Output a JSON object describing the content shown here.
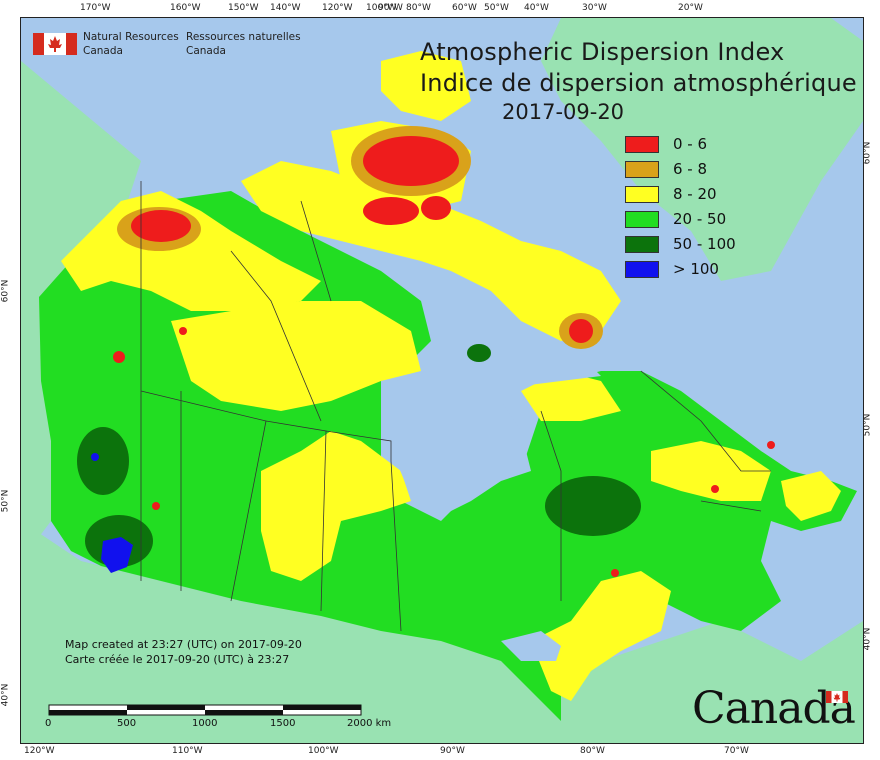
{
  "agency": {
    "name_en_line1": "Natural Resources",
    "name_en_line2": "Canada",
    "name_fr_line1": "Ressources naturelles",
    "name_fr_line2": "Canada"
  },
  "title": {
    "line1": "Atmospheric Dispersion Index",
    "line2": "Indice de dispersion atmosphérique",
    "date": "2017-09-20"
  },
  "legend": [
    {
      "label": "0 - 6",
      "color": "#ee1c1c"
    },
    {
      "label": "6 - 8",
      "color": "#d9a21a"
    },
    {
      "label": "8 - 20",
      "color": "#ffff22"
    },
    {
      "label": "20 - 50",
      "color": "#22dd22"
    },
    {
      "label": "50 - 100",
      "color": "#0c730c"
    },
    {
      "label": "> 100",
      "color": "#1111ee"
    }
  ],
  "footnote": {
    "en": "Map created at 23:27 (UTC) on 2017-09-20",
    "fr": "Carte créée le 2017-09-20 (UTC) à 23:27"
  },
  "scale": {
    "labels": [
      "0",
      "500",
      "1000",
      "1500",
      "2000 km"
    ]
  },
  "top_ticks": [
    "170°W",
    "160°W",
    "150°W",
    "140°W",
    "120°W",
    "100°W",
    "90°W",
    "80°W",
    "60°W",
    "50°W",
    "40°W",
    "30°W",
    "20°W"
  ],
  "bottom_ticks": [
    "120°W",
    "110°W",
    "100°W",
    "90°W",
    "80°W",
    "70°W"
  ],
  "left_ticks": [
    "60°N",
    "50°N",
    "40°N"
  ],
  "right_ticks": [
    "60°N",
    "50°N",
    "40°N"
  ],
  "wordmark": "Canada",
  "colors": {
    "ocean": "#a6c8ec",
    "land_outside": "#99e2b2",
    "frame": "#ffffff"
  }
}
